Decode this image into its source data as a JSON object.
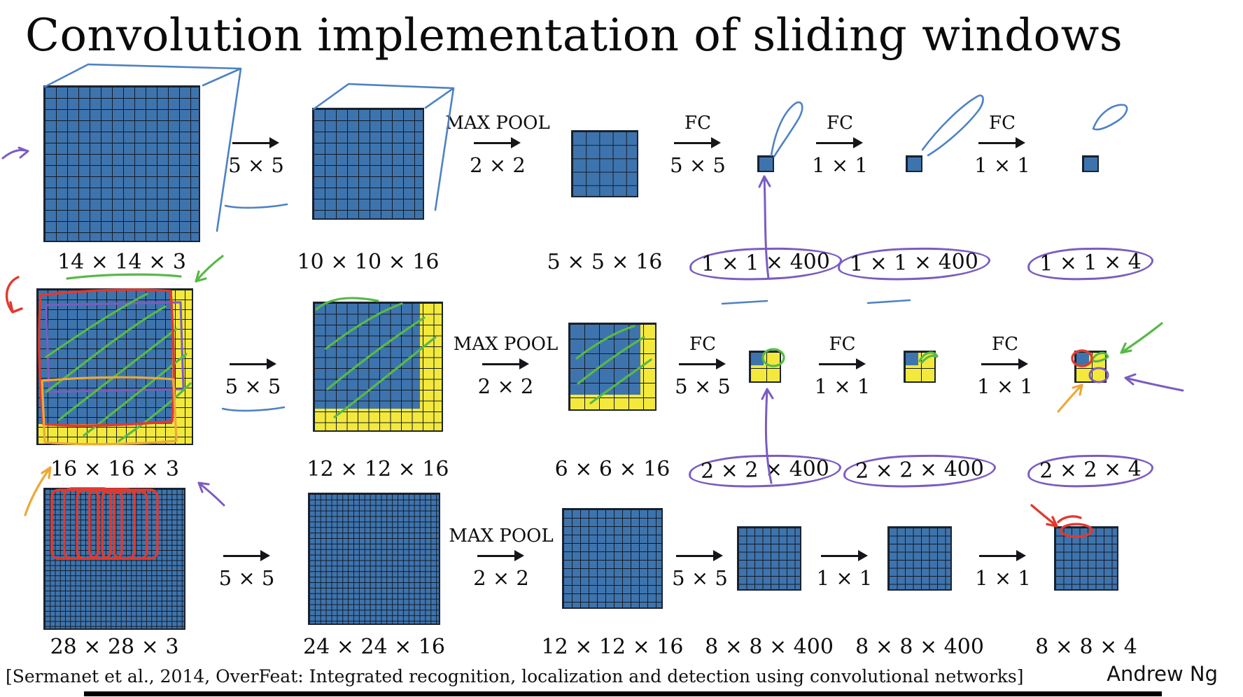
{
  "slide": {
    "title": "Convolution implementation of sliding windows",
    "citation": "[Sermanet et al., 2014, OverFeat: Integrated recognition, localization and detection using convolutional networks]",
    "author": "Andrew Ng"
  },
  "colors": {
    "grid_blue": "#3e74ad",
    "grid_yellow": "#f3e93d",
    "grid_line": "#141a26",
    "pen_blue": "#4d82c4",
    "pen_purple": "#7b5cc0",
    "pen_green": "#58b948",
    "pen_red": "#e03a30",
    "pen_orange": "#eda83a"
  },
  "rows": [
    {
      "name": "row-14x14-scale",
      "items": [
        {
          "type": "grid",
          "cells": 14,
          "label": "14 × 14 × 3"
        },
        {
          "type": "arrow",
          "top": "",
          "bottom": "5 × 5"
        },
        {
          "type": "grid",
          "cells": 10,
          "label": "10 × 10 × 16"
        },
        {
          "type": "arrow",
          "top": "MAX POOL",
          "bottom": "2 × 2"
        },
        {
          "type": "grid",
          "cells": 5,
          "label": "5 × 5 × 16"
        },
        {
          "type": "arrow",
          "top": "FC",
          "bottom": "5 × 5"
        },
        {
          "type": "grid",
          "cells": 1,
          "label": "1 × 1 × 400",
          "circled": true
        },
        {
          "type": "arrow",
          "top": "FC",
          "bottom": "1 × 1"
        },
        {
          "type": "grid",
          "cells": 1,
          "label": "1 × 1 × 400",
          "circled": true
        },
        {
          "type": "arrow",
          "top": "FC",
          "bottom": "1 × 1"
        },
        {
          "type": "grid",
          "cells": 1,
          "label": "1 × 1 × 4",
          "circled": true
        }
      ]
    },
    {
      "name": "row-16x16-scale",
      "items": [
        {
          "type": "grid",
          "cells": 16,
          "label": "16 × 16 × 3",
          "yellow": 2
        },
        {
          "type": "arrow",
          "top": "",
          "bottom": "5 × 5"
        },
        {
          "type": "grid",
          "cells": 12,
          "label": "12 × 12 × 16",
          "yellow": 2
        },
        {
          "type": "arrow",
          "top": "MAX POOL",
          "bottom": "2 × 2"
        },
        {
          "type": "grid",
          "cells": 6,
          "label": "6 × 6 × 16",
          "yellow": 1
        },
        {
          "type": "arrow",
          "top": "FC",
          "bottom": "5 × 5"
        },
        {
          "type": "grid",
          "cells": 2,
          "label": "2 × 2 × 400",
          "yellow": 1,
          "circled": true
        },
        {
          "type": "arrow",
          "top": "FC",
          "bottom": "1 × 1"
        },
        {
          "type": "grid",
          "cells": 2,
          "label": "2 × 2 × 400",
          "yellow": 1,
          "circled": true
        },
        {
          "type": "arrow",
          "top": "FC",
          "bottom": "1 × 1"
        },
        {
          "type": "grid",
          "cells": 2,
          "label": "2 × 2 × 4",
          "yellow": 1,
          "circled": true
        }
      ]
    },
    {
      "name": "row-28x28-scale",
      "items": [
        {
          "type": "grid",
          "cells": 28,
          "label": "28 × 28 × 3"
        },
        {
          "type": "arrow",
          "top": "",
          "bottom": "5 × 5"
        },
        {
          "type": "grid",
          "cells": 24,
          "label": "24 × 24 × 16"
        },
        {
          "type": "arrow",
          "top": "MAX POOL",
          "bottom": "2 × 2"
        },
        {
          "type": "grid",
          "cells": 12,
          "label": "12 × 12 × 16"
        },
        {
          "type": "arrow",
          "top": "",
          "bottom": "5 × 5"
        },
        {
          "type": "grid",
          "cells": 8,
          "label": "8 × 8 × 400"
        },
        {
          "type": "arrow",
          "top": "",
          "bottom": "1 × 1"
        },
        {
          "type": "grid",
          "cells": 8,
          "label": "8 × 8 × 400"
        },
        {
          "type": "arrow",
          "top": "",
          "bottom": "1 × 1"
        },
        {
          "type": "grid",
          "cells": 8,
          "label": "8 × 8 × 4"
        }
      ]
    }
  ]
}
